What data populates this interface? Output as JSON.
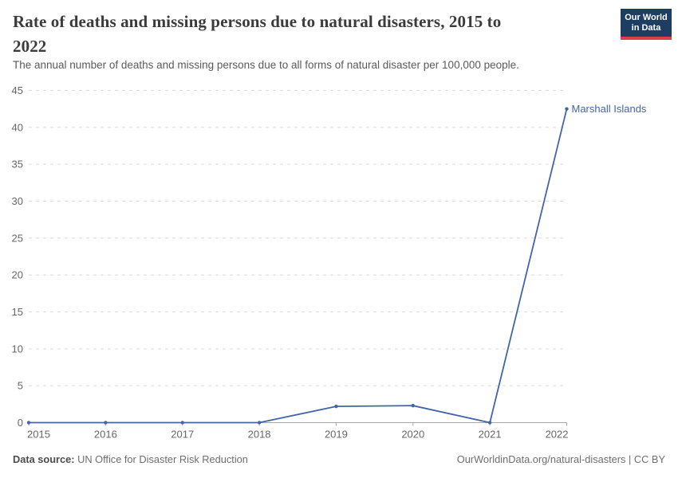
{
  "header": {
    "title": "Rate of deaths and missing persons due to natural disasters, 2015 to 2022",
    "title_lines": [
      "Rate of deaths and missing persons due to natural disasters, 2015 to",
      "2022"
    ],
    "subtitle": "The annual number of deaths and missing persons due to all forms of natural disaster per 100,000 people.",
    "logo": {
      "line1": "Our World",
      "line2": "in Data",
      "bg_color": "#1d3d63",
      "accent_color": "#dc3d4c"
    }
  },
  "chart_data": {
    "type": "line",
    "title": "Rate of deaths and missing persons due to natural disasters, 2015 to 2022",
    "x": [
      2015,
      2016,
      2017,
      2018,
      2019,
      2020,
      2021,
      2022
    ],
    "series": [
      {
        "name": "Marshall Islands",
        "color": "#4365a5",
        "values": [
          0,
          0,
          0,
          0,
          2.2,
          2.3,
          0,
          42.5
        ]
      }
    ],
    "xlabel": "",
    "ylabel": "",
    "ylim": [
      0,
      45
    ],
    "yticks": [
      0,
      5,
      10,
      15,
      20,
      25,
      30,
      35,
      40,
      45
    ],
    "grid": true,
    "legend_position": "end-of-line-label",
    "gridline_color": "#dadada",
    "axis_color": "#a6a6a6",
    "tick_label_color": "#666666"
  },
  "footer": {
    "source_label": "Data source:",
    "source_value": "UN Office for Disaster Risk Reduction",
    "attribution": "OurWorldinData.org/natural-disasters | CC BY"
  }
}
